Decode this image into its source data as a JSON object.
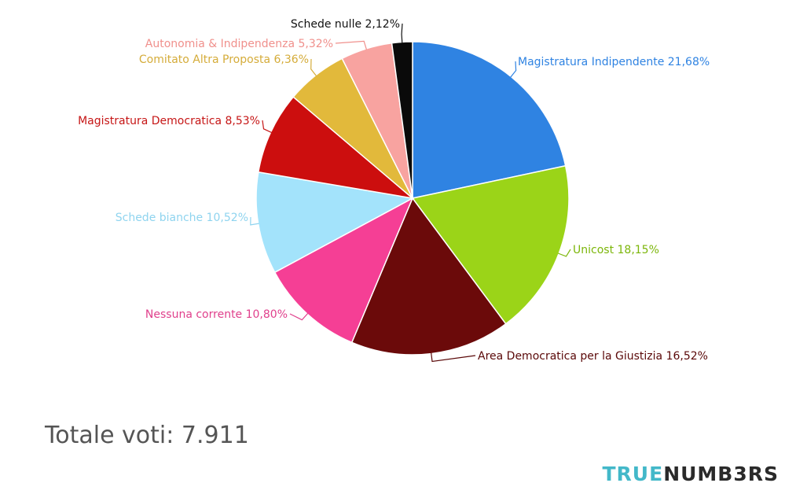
{
  "chart_data": {
    "type": "pie",
    "slices": [
      {
        "label": "Magistratura Indipendente 21,68%",
        "value": 21.68,
        "color": "#2f83e2"
      },
      {
        "label": "Unicost 18,15%",
        "value": 18.15,
        "color": "#9bd418"
      },
      {
        "label": "Area Democratica per la Giustizia 16,52%",
        "value": 16.52,
        "color": "#6b0a0a"
      },
      {
        "label": "Nessuna corrente 10,80%",
        "value": 10.8,
        "color": "#f53f95"
      },
      {
        "label": "Schede bianche 10,52%",
        "value": 10.52,
        "color": "#a3e3fb"
      },
      {
        "label": "Magistratura Democratica 8,53%",
        "value": 8.53,
        "color": "#cc0e0e"
      },
      {
        "label": "Comitato Altra Proposta 6,36%",
        "value": 6.36,
        "color": "#e2b93b"
      },
      {
        "label": "Autonomia & Indipendenza 5,32%",
        "value": 5.32,
        "color": "#f8a3a0"
      },
      {
        "label": "Schede nulle 2,12%",
        "value": 2.12,
        "color": "#0a0a0a"
      }
    ]
  },
  "footer": {
    "total": "Totale voti: 7.911",
    "logo_part1": "TRUE",
    "logo_part2": "NUMB3RS"
  }
}
